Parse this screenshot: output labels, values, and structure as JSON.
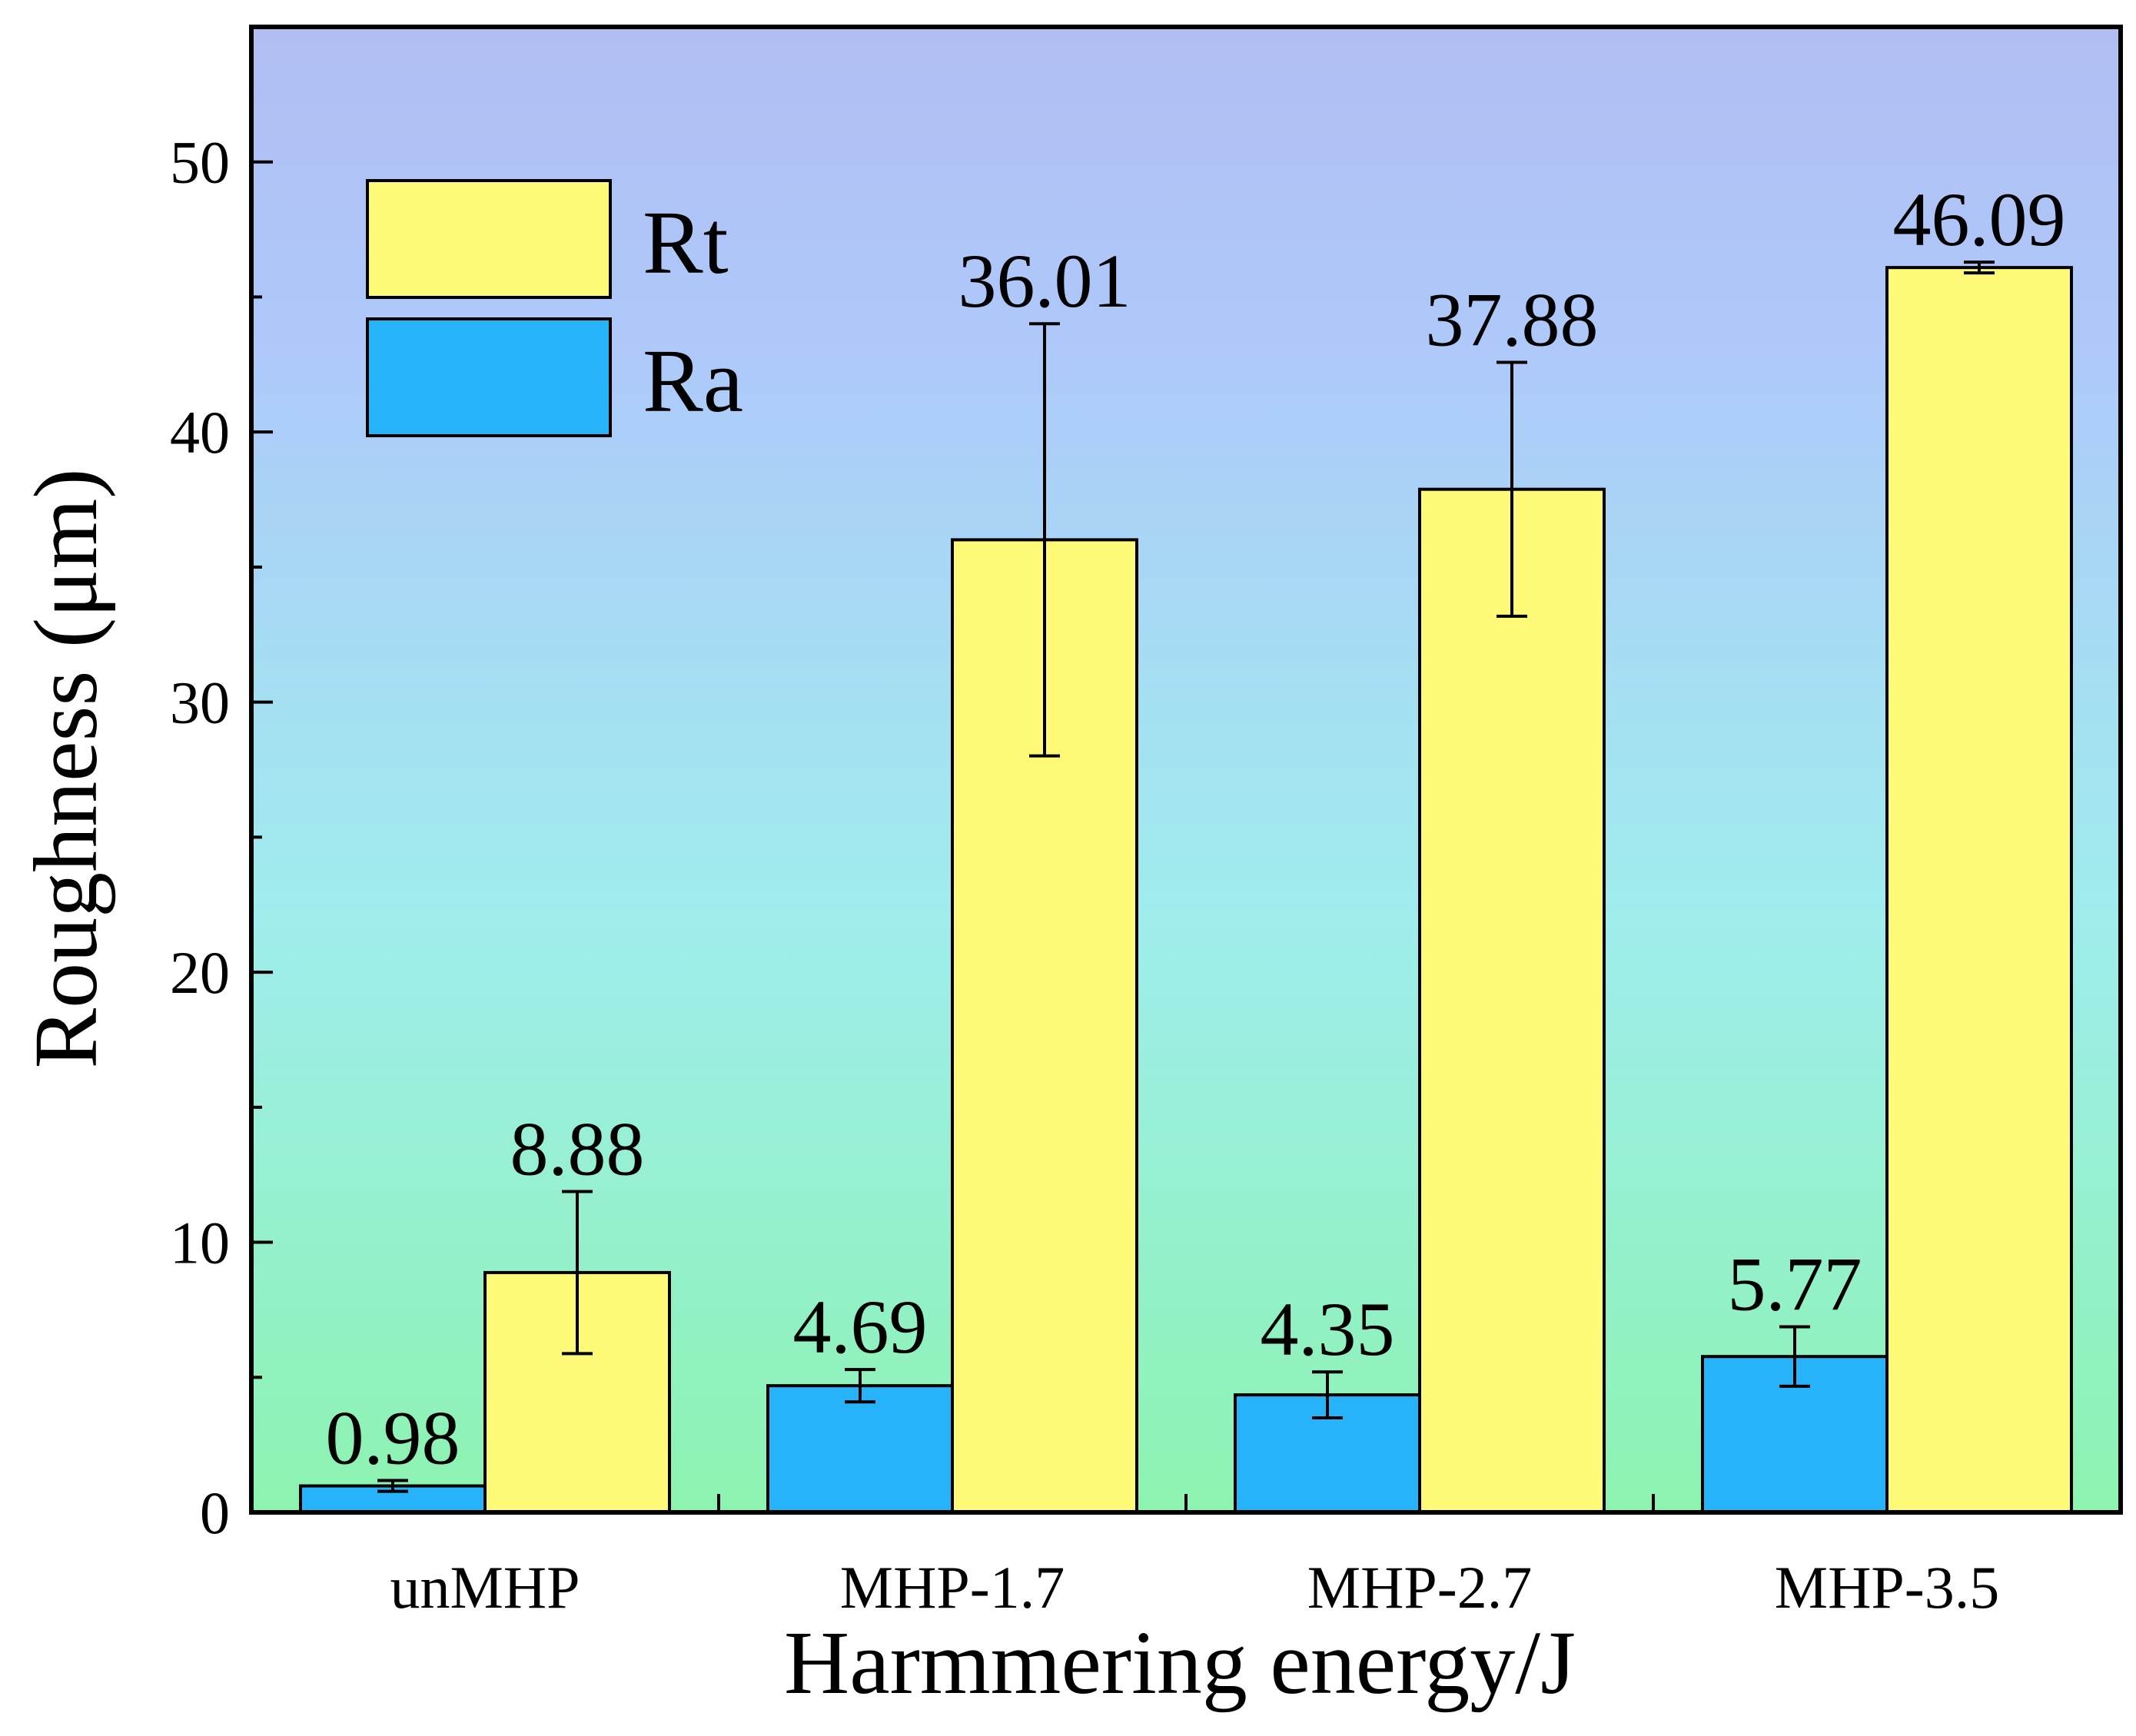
{
  "chart_data": {
    "type": "bar",
    "title": "",
    "xlabel": "Harmmering energy/J",
    "ylabel": "Roughness (μm)",
    "ylim": [
      0,
      55
    ],
    "yticks": [
      0,
      10,
      20,
      30,
      40,
      50
    ],
    "categories": [
      "unMHP",
      "MHP-1.7",
      "MHP-2.7",
      "MHP-3.5"
    ],
    "series": [
      {
        "name": "Ra",
        "color": "#26B3FA",
        "values": [
          0.98,
          4.69,
          4.35,
          5.77
        ],
        "labels": [
          "0.98",
          "4.69",
          "4.35",
          "5.77"
        ],
        "errors": [
          0.2,
          0.6,
          0.85,
          1.1
        ]
      },
      {
        "name": "Rt",
        "color": "#FEFA78",
        "values": [
          8.88,
          36.01,
          37.88,
          46.09
        ],
        "labels": [
          "8.88",
          "36.01",
          "37.88",
          "46.09"
        ],
        "errors": [
          3.0,
          8.0,
          4.7,
          0.2
        ]
      }
    ],
    "legend": {
      "position": "top-left",
      "order": [
        "Rt",
        "Ra"
      ]
    },
    "background_gradient": [
      "#B1BEF2",
      "#AEC9FA",
      "#9FEDED",
      "#8CF3AF"
    ]
  }
}
